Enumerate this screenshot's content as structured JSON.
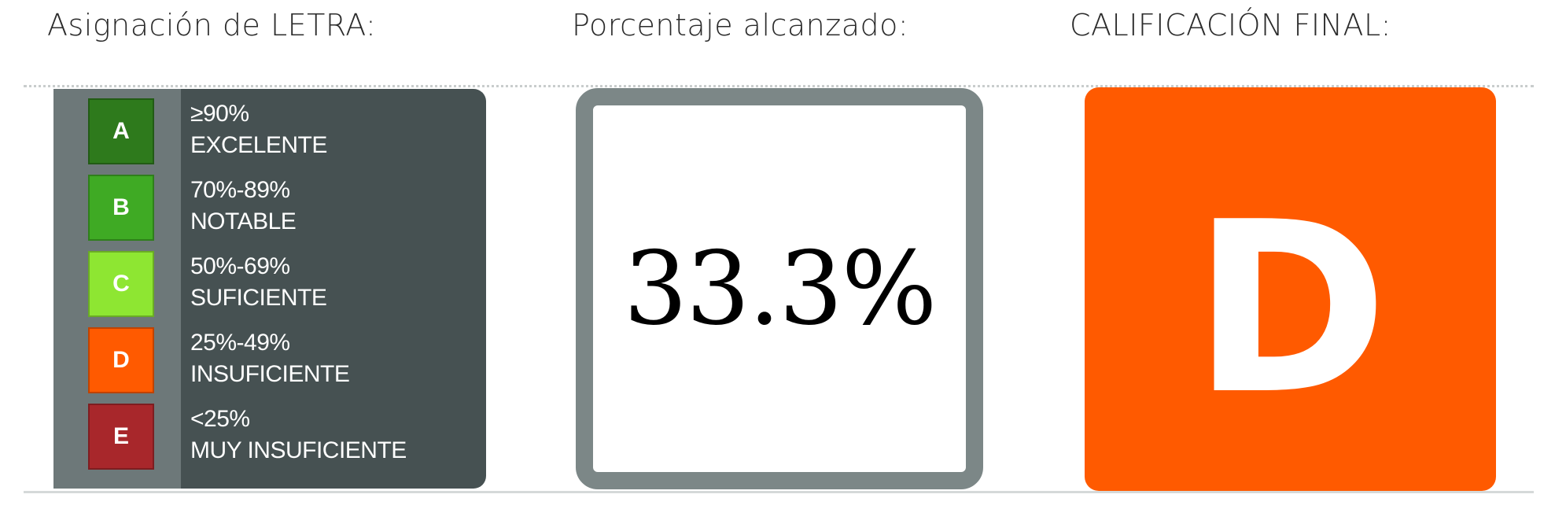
{
  "headings": {
    "letter_assignment": "Asignación de LETRA:",
    "percentage": "Porcentaje alcanzado:",
    "final_grade": "CALIFICACIÓN FINAL:"
  },
  "legend": [
    {
      "letter": "A",
      "range": "≥90%",
      "label": "EXCELENTE",
      "color": "#2e7a1c"
    },
    {
      "letter": "B",
      "range": "70%-89%",
      "label": "NOTABLE",
      "color": "#3faa24"
    },
    {
      "letter": "C",
      "range": "50%-69%",
      "label": "SUFICIENTE",
      "color": "#8ee632"
    },
    {
      "letter": "D",
      "range": "25%-49%",
      "label": "INSUFICIENTE",
      "color": "#ff5a00"
    },
    {
      "letter": "E",
      "range": "<25%",
      "label": "MUY INSUFICIENTE",
      "color": "#a8272b"
    }
  ],
  "percentage_value": "33.3%",
  "final_grade": {
    "letter": "D",
    "color": "#ff5a00"
  }
}
